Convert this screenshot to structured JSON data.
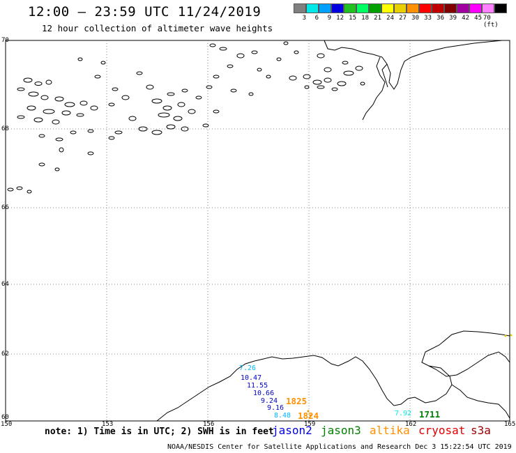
{
  "header": {
    "title": "12:00 – 23:59 UTC 11/24/2019",
    "subtitle": "12 hour collection of altimeter wave heights"
  },
  "legend": {
    "colors": [
      "#808080",
      "#00e8e8",
      "#00a0ff",
      "#0000e0",
      "#20c020",
      "#00ff60",
      "#00a000",
      "#ffff00",
      "#e8d000",
      "#ff9000",
      "#ff0000",
      "#c00000",
      "#800000",
      "#a000a0",
      "#ff00ff",
      "#ff80ff",
      "#000000"
    ],
    "labels": [
      "3",
      "6",
      "9",
      "12",
      "15",
      "18",
      "21",
      "24",
      "27",
      "30",
      "33",
      "36",
      "39",
      "42",
      "45",
      "70 (ft)"
    ]
  },
  "map": {
    "lat_labels": [
      "70",
      "68",
      "66",
      "64",
      "62",
      "60"
    ],
    "lon_labels": [
      "150",
      "153",
      "156",
      "159",
      "162",
      "165"
    ],
    "observations": [
      {
        "text": "7.26",
        "color": "#00b8ff"
      },
      {
        "text": "10.47",
        "color": "#0000c8"
      },
      {
        "text": "11.55",
        "color": "#0000c8"
      },
      {
        "text": "10.66",
        "color": "#0000c8"
      },
      {
        "text": "9.24",
        "color": "#0000c8"
      },
      {
        "text": "9.16",
        "color": "#0000c8"
      },
      {
        "text": "8.48",
        "color": "#00b8ff"
      },
      {
        "text": "7.92",
        "color": "#00e8e8"
      }
    ],
    "pass_times": [
      {
        "text": "1825",
        "color": "#ff9000"
      },
      {
        "text": "1824",
        "color": "#ff9000"
      },
      {
        "text": "1711",
        "color": "#008000"
      }
    ]
  },
  "footer": {
    "note": "note: 1) Time is in UTC; 2) SWH is in feet",
    "satellites": [
      {
        "name": "jason2",
        "color": "#0000e0"
      },
      {
        "name": "jason3",
        "color": "#008000"
      },
      {
        "name": "altika",
        "color": "#ff9000"
      },
      {
        "name": "cryosat",
        "color": "#e00000"
      },
      {
        "name": "s3a",
        "color": "#a00000"
      }
    ],
    "credit": "NOAA/NESDIS Center for Satellite Applications and Research    Dec  3 15:22:54 UTC 2019"
  }
}
